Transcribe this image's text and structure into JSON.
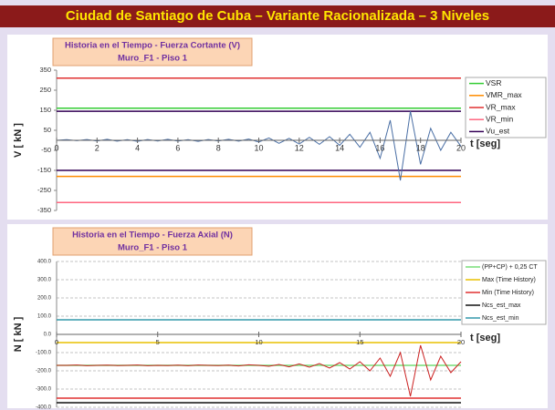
{
  "header": {
    "title": "Ciudad de Santiago de Cuba – Variante Racionalizada – 3 Niveles"
  },
  "chart_data": [
    {
      "type": "line",
      "title": "Historia en el Tiempo   -   Fuerza Cortante (V)",
      "subtitle": "Muro_F1 - Piso 1",
      "x_label": "t [seg]",
      "y_label": "V [ kN ]",
      "xlim": [
        0,
        20
      ],
      "xticks": [
        0,
        2,
        4,
        6,
        8,
        10,
        12,
        14,
        16,
        18,
        20
      ],
      "ylim": [
        -350,
        350
      ],
      "yticks": [
        -350,
        -250,
        -150,
        -50,
        50,
        150,
        250,
        350
      ],
      "grid": false,
      "series": [
        {
          "name": "VSR",
          "color": "#33cc33",
          "levels": [
            160
          ]
        },
        {
          "name": "VMR_max",
          "color": "#ff8c00",
          "levels": [
            -180
          ]
        },
        {
          "name": "VR_max",
          "color": "#e03030",
          "levels": [
            310
          ]
        },
        {
          "name": "VR_min",
          "color": "#ff6680",
          "levels": [
            -310
          ]
        },
        {
          "name": "Vu_est",
          "color": "#330055",
          "levels": [
            145,
            -150
          ]
        }
      ],
      "x": [
        0,
        0.5,
        1,
        1.5,
        2,
        2.5,
        3,
        3.5,
        4,
        4.5,
        5,
        5.5,
        6,
        6.5,
        7,
        7.5,
        8,
        8.5,
        9,
        9.5,
        10,
        10.5,
        11,
        11.5,
        12,
        12.5,
        13,
        13.5,
        14,
        14.5,
        15,
        15.5,
        16,
        16.5,
        17,
        17.5,
        18,
        18.5,
        19,
        19.5,
        20
      ],
      "signal": {
        "color": "#4a6fa5",
        "values": [
          0,
          3,
          -2,
          4,
          -3,
          5,
          -4,
          3,
          -5,
          4,
          -3,
          5,
          -4,
          3,
          -5,
          4,
          -3,
          5,
          -4,
          6,
          -8,
          12,
          -15,
          10,
          -18,
          15,
          -20,
          18,
          -25,
          30,
          -35,
          40,
          -90,
          100,
          -200,
          145,
          -120,
          60,
          -50,
          40,
          -30
        ]
      }
    },
    {
      "type": "line",
      "title": "Historia en el Tiempo   -   Fuerza  Axial (N)",
      "subtitle": "Muro_F1   -   Piso 1",
      "x_label": "t [seg]",
      "y_label": "N [ kN ]",
      "xlim": [
        0,
        20
      ],
      "xticks": [
        0,
        5,
        10,
        15,
        20
      ],
      "ylim": [
        -400,
        400
      ],
      "yticks": [
        {
          "value": -400,
          "label": "-400.0"
        },
        {
          "value": -300,
          "label": "-300.0"
        },
        {
          "value": -200,
          "label": "-200.0"
        },
        {
          "value": -100,
          "label": "-100.0"
        },
        {
          "value": 0,
          "label": "0.0"
        },
        {
          "value": 100,
          "label": "100.0"
        },
        {
          "value": 200,
          "label": "200.0"
        },
        {
          "value": 300,
          "label": "300.0"
        },
        {
          "value": 400,
          "label": "400.0"
        }
      ],
      "grid": true,
      "series": [
        {
          "name": "(PP+CP) + 0,25 CT",
          "color": "#77dd77",
          "levels": [
            -170
          ]
        },
        {
          "name": "Max (Time History)",
          "color": "#e8c000",
          "levels": [
            -45
          ]
        },
        {
          "name": "Min (Time History)",
          "color": "#e03030",
          "levels": [
            -350
          ]
        },
        {
          "name": "Ncs_est_max",
          "color": "#111111",
          "levels": [
            -375
          ]
        },
        {
          "name": "Ncs_est_min",
          "color": "#3399aa",
          "levels": [
            80
          ]
        }
      ],
      "x": [
        0,
        0.5,
        1,
        1.5,
        2,
        2.5,
        3,
        3.5,
        4,
        4.5,
        5,
        5.5,
        6,
        6.5,
        7,
        7.5,
        8,
        8.5,
        9,
        9.5,
        10,
        10.5,
        11,
        11.5,
        12,
        12.5,
        13,
        13.5,
        14,
        14.5,
        15,
        15.5,
        16,
        16.5,
        17,
        17.5,
        18,
        18.5,
        19,
        19.5,
        20
      ],
      "signal": {
        "color": "#cc2222",
        "values": [
          -170,
          -170,
          -168,
          -172,
          -170,
          -169,
          -171,
          -170,
          -168,
          -172,
          -170,
          -171,
          -169,
          -172,
          -168,
          -170,
          -171,
          -169,
          -173,
          -167,
          -170,
          -175,
          -165,
          -178,
          -162,
          -180,
          -160,
          -185,
          -155,
          -190,
          -150,
          -200,
          -130,
          -230,
          -100,
          -340,
          -60,
          -250,
          -120,
          -210,
          -150
        ]
      }
    }
  ]
}
